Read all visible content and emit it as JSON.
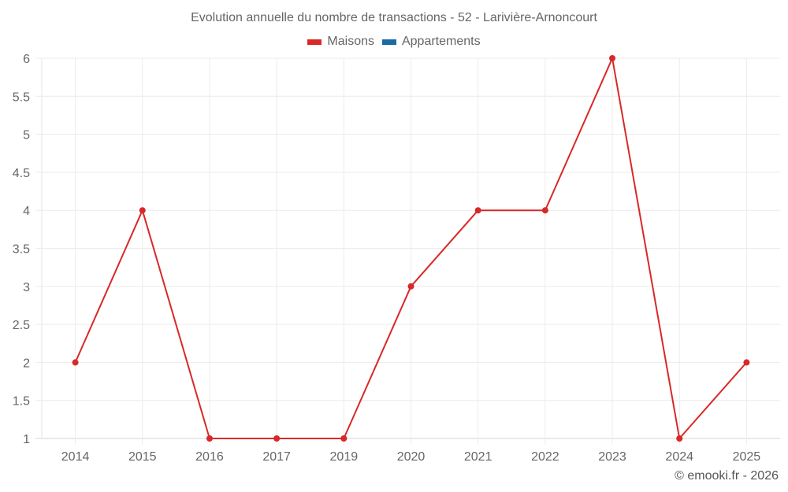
{
  "chart_data": {
    "type": "line",
    "title": "Evolution annuelle du nombre de transactions - 52 - Larivière-Arnoncourt",
    "categories": [
      "2014",
      "2015",
      "2016",
      "2017",
      "2019",
      "2020",
      "2021",
      "2022",
      "2023",
      "2024",
      "2025"
    ],
    "series": [
      {
        "name": "Maisons",
        "color": "#d92828",
        "values": [
          2,
          4,
          1,
          1,
          1,
          3,
          4,
          4,
          6,
          1,
          2
        ]
      },
      {
        "name": "Appartements",
        "color": "#1a6aa5",
        "values": []
      }
    ],
    "yticks": [
      "1",
      "1.5",
      "2",
      "2.5",
      "3",
      "3.5",
      "4",
      "4.5",
      "5",
      "5.5",
      "6"
    ],
    "ylim": [
      1,
      6
    ],
    "xlabel": "",
    "ylabel": "",
    "grid": true,
    "legend_position": "top"
  },
  "header": {
    "title": "Evolution annuelle du nombre de transactions - 52 - Larivière-Arnoncourt"
  },
  "legend": {
    "items": [
      {
        "label": "Maisons",
        "color": "#d92828"
      },
      {
        "label": "Appartements",
        "color": "#1a6aa5"
      }
    ]
  },
  "footer": {
    "credit": "© emooki.fr - 2026"
  }
}
